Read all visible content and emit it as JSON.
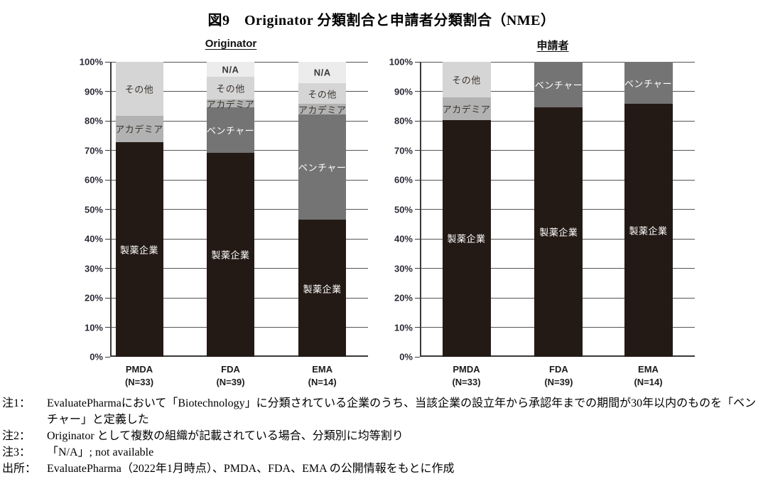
{
  "title": "図9　Originator 分類割合と申請者分類割合（NME）",
  "chart_data": [
    {
      "type": "bar",
      "stacked": true,
      "title": "Originator",
      "categories": [
        {
          "name": "PMDA",
          "n": "(N=33)"
        },
        {
          "name": "FDA",
          "n": "(N=39)"
        },
        {
          "name": "EMA",
          "n": "(N=14)"
        }
      ],
      "ylim": [
        0,
        100
      ],
      "yticks": [
        "0%",
        "10%",
        "20%",
        "30%",
        "40%",
        "50%",
        "60%",
        "70%",
        "80%",
        "90%",
        "100%"
      ],
      "grid": true,
      "legend": "labels-inside-bars",
      "series": [
        {
          "name": "製薬企業",
          "values": [
            72.7,
            69.2,
            46.4
          ],
          "color": "#241a15",
          "label_color": "#ffffff",
          "bold": false
        },
        {
          "name": "ベンチャー",
          "values": [
            0,
            15.4,
            35.7
          ],
          "color": "#747474",
          "label_color": "#ffffff",
          "bold": false
        },
        {
          "name": "アカデミア",
          "values": [
            9.1,
            2.6,
            3.6
          ],
          "color": "#b2b2b2",
          "label_color": "#3b3530",
          "bold": false
        },
        {
          "name": "その他",
          "values": [
            18.2,
            7.7,
            7.1
          ],
          "color": "#d5d5d5",
          "label_color": "#3b3530",
          "bold": false
        },
        {
          "name": "N/A",
          "values": [
            0,
            5.1,
            7.1
          ],
          "color": "#ececec",
          "label_color": "#3a3a3a",
          "bold": true
        }
      ]
    },
    {
      "type": "bar",
      "stacked": true,
      "title": "申請者",
      "categories": [
        {
          "name": "PMDA",
          "n": "(N=33)"
        },
        {
          "name": "FDA",
          "n": "(N=39)"
        },
        {
          "name": "EMA",
          "n": "(N=14)"
        }
      ],
      "ylim": [
        0,
        100
      ],
      "yticks": [
        "0%",
        "10%",
        "20%",
        "30%",
        "40%",
        "50%",
        "60%",
        "70%",
        "80%",
        "90%",
        "100%"
      ],
      "grid": true,
      "legend": "labels-inside-bars",
      "series": [
        {
          "name": "製薬企業",
          "values": [
            80.3,
            84.6,
            85.7
          ],
          "color": "#241a15",
          "label_color": "#ffffff",
          "bold": false
        },
        {
          "name": "ベンチャー",
          "values": [
            0,
            15.4,
            14.3
          ],
          "color": "#747474",
          "label_color": "#ffffff",
          "bold": false
        },
        {
          "name": "アカデミア",
          "values": [
            7.6,
            0,
            0
          ],
          "color": "#b2b2b2",
          "label_color": "#3b3530",
          "bold": false
        },
        {
          "name": "その他",
          "values": [
            12.1,
            0,
            0
          ],
          "color": "#d5d5d5",
          "label_color": "#3b3530",
          "bold": false
        },
        {
          "name": "N/A",
          "values": [
            0,
            0,
            0
          ],
          "color": "#ececec",
          "label_color": "#3a3a3a",
          "bold": true
        }
      ]
    }
  ],
  "notes": [
    {
      "label": "注1：",
      "text": "EvaluatePharmaにおいて「Biotechnology」に分類されている企業のうち、当該企業の設立年から承認年までの期間が30年以内のものを「ベンチャー」と定義した"
    },
    {
      "label": "注2：",
      "text": "Originator として複数の組織が記載されている場合、分類別に均等割り"
    },
    {
      "label": "注3：",
      "text": "「N/A」; not available"
    },
    {
      "label": "出所：",
      "text": "EvaluatePharma（2022年1月時点）、PMDA、FDA、EMA の公開情報をもとに作成"
    }
  ]
}
